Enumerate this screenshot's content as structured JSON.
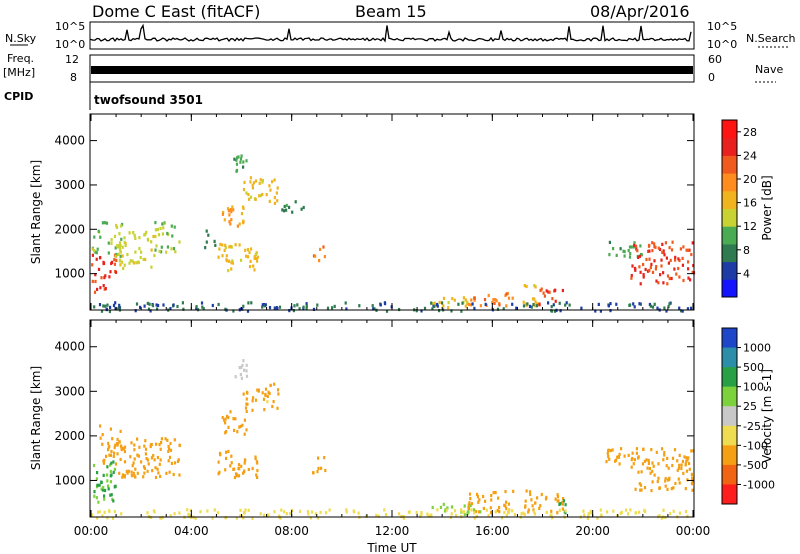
{
  "header": {
    "station": "Dome C East (fitACF)",
    "beam": "Beam 15",
    "date": "08/Apr/2016"
  },
  "status_panels": {
    "nsky_label": "N.Sky",
    "nsky_ticks": [
      "10^5",
      "10^0"
    ],
    "nsearch_label": "N.Search",
    "nsearch_ticks": [
      "10^5",
      "10^0"
    ],
    "freq_label_1": "Freq.",
    "freq_label_2": "[MHz]",
    "freq_ticks": [
      "12",
      "8"
    ],
    "nave_label": "Nave",
    "nave_ticks": [
      "60",
      "0"
    ],
    "cpid_label": "CPID",
    "cpid_value": "twofsound 3501"
  },
  "colors": {
    "power_scale": [
      "#1414ff",
      "#1e3ca6",
      "#2f7a4e",
      "#4bab52",
      "#c8d232",
      "#f0b41e",
      "#ff8c1e",
      "#f05a1e",
      "#e8201e",
      "#ff1414"
    ],
    "velocity_scale": [
      "#1e46c8",
      "#2d8eaa",
      "#2aa046",
      "#7cd23c",
      "#c8c8c8",
      "#f0dc50",
      "#f5a014",
      "#f06414",
      "#ff1e1e"
    ]
  },
  "chart_data": [
    {
      "type": "heatmap",
      "name": "power",
      "ylabel": "Slant Range [km]",
      "yticks": [
        1000,
        2000,
        3000,
        4000
      ],
      "ylim": [
        180,
        4600
      ],
      "xticks": [
        "00:00",
        "04:00",
        "08:00",
        "12:00",
        "16:00",
        "20:00",
        "00:00"
      ],
      "xlim_hours": [
        0,
        24
      ],
      "colorbar_label": "Power [dB]",
      "colorbar_ticks": [
        "28",
        "24",
        "20",
        "16",
        "12",
        "8",
        "4"
      ],
      "colorbar_range": [
        0,
        30
      ],
      "regions": [
        {
          "t": [
            0.0,
            1.0
          ],
          "r": [
            600,
            1500
          ],
          "v": 24
        },
        {
          "t": [
            0.0,
            1.2
          ],
          "r": [
            1400,
            2200
          ],
          "v": 12
        },
        {
          "t": [
            1.0,
            2.5
          ],
          "r": [
            1100,
            2000
          ],
          "v": 14
        },
        {
          "t": [
            2.5,
            3.5
          ],
          "r": [
            1500,
            2200
          ],
          "v": 12
        },
        {
          "t": [
            4.5,
            5.0
          ],
          "r": [
            1600,
            2000
          ],
          "v": 8
        },
        {
          "t": [
            5.0,
            6.7
          ],
          "r": [
            1100,
            1700
          ],
          "v": 16
        },
        {
          "t": [
            5.2,
            6.2
          ],
          "r": [
            2000,
            2600
          ],
          "v": 18
        },
        {
          "t": [
            5.6,
            6.2
          ],
          "r": [
            3300,
            3750
          ],
          "v": 10
        },
        {
          "t": [
            6.0,
            7.5
          ],
          "r": [
            2600,
            3200
          ],
          "v": 16
        },
        {
          "t": [
            7.5,
            8.5
          ],
          "r": [
            2400,
            2700
          ],
          "v": 8
        },
        {
          "t": [
            8.8,
            9.3
          ],
          "r": [
            1200,
            1700
          ],
          "v": 20
        },
        {
          "t": [
            13.5,
            15.5
          ],
          "r": [
            250,
            500
          ],
          "v": 16
        },
        {
          "t": [
            15.0,
            16.8
          ],
          "r": [
            300,
            600
          ],
          "v": 20
        },
        {
          "t": [
            17.2,
            17.8
          ],
          "r": [
            300,
            900
          ],
          "v": 16
        },
        {
          "t": [
            17.8,
            18.8
          ],
          "r": [
            300,
            700
          ],
          "v": 24
        },
        {
          "t": [
            20.5,
            22.0
          ],
          "r": [
            1400,
            1750
          ],
          "v": 10
        },
        {
          "t": [
            21.5,
            24.0
          ],
          "r": [
            800,
            1750
          ],
          "v": 24
        },
        {
          "t": [
            0.0,
            24.0
          ],
          "r": [
            180,
            380
          ],
          "v": 6
        }
      ]
    },
    {
      "type": "heatmap",
      "name": "velocity",
      "ylabel": "Slant Range [km]",
      "yticks": [
        1000,
        2000,
        3000,
        4000
      ],
      "ylim": [
        180,
        4600
      ],
      "xticks": [
        "00:00",
        "04:00",
        "08:00",
        "12:00",
        "16:00",
        "20:00",
        "00:00"
      ],
      "xlabel": "Time UT",
      "xlim_hours": [
        0,
        24
      ],
      "colorbar_label": "Velocity [m s-1]",
      "colorbar_ticks": [
        "1000",
        "500",
        "100",
        "25",
        "-25",
        "-100",
        "-500",
        "-1000"
      ],
      "regions": [
        {
          "t": [
            0.0,
            1.0
          ],
          "r": [
            500,
            1500
          ],
          "v": 100
        },
        {
          "t": [
            0.3,
            1.2
          ],
          "r": [
            1400,
            2300
          ],
          "v": -150
        },
        {
          "t": [
            1.0,
            3.5
          ],
          "r": [
            1100,
            2000
          ],
          "v": -300
        },
        {
          "t": [
            5.0,
            6.7
          ],
          "r": [
            1100,
            1700
          ],
          "v": -300
        },
        {
          "t": [
            5.2,
            6.2
          ],
          "r": [
            2000,
            2600
          ],
          "v": -150
        },
        {
          "t": [
            5.6,
            6.2
          ],
          "r": [
            3300,
            3750
          ],
          "v": 0
        },
        {
          "t": [
            6.0,
            7.5
          ],
          "r": [
            2600,
            3200
          ],
          "v": -120
        },
        {
          "t": [
            8.8,
            9.3
          ],
          "r": [
            1200,
            1700
          ],
          "v": -300
        },
        {
          "t": [
            13.5,
            15.5
          ],
          "r": [
            250,
            500
          ],
          "v": 60
        },
        {
          "t": [
            15.0,
            16.8
          ],
          "r": [
            300,
            800
          ],
          "v": -300
        },
        {
          "t": [
            17.2,
            18.8
          ],
          "r": [
            300,
            800
          ],
          "v": -400
        },
        {
          "t": [
            18.5,
            19.0
          ],
          "r": [
            300,
            600
          ],
          "v": 150
        },
        {
          "t": [
            20.5,
            22.0
          ],
          "r": [
            1400,
            1750
          ],
          "v": -120
        },
        {
          "t": [
            21.5,
            24.0
          ],
          "r": [
            800,
            1750
          ],
          "v": -150
        },
        {
          "t": [
            0.0,
            24.0
          ],
          "r": [
            180,
            380
          ],
          "v": -40
        }
      ]
    }
  ]
}
